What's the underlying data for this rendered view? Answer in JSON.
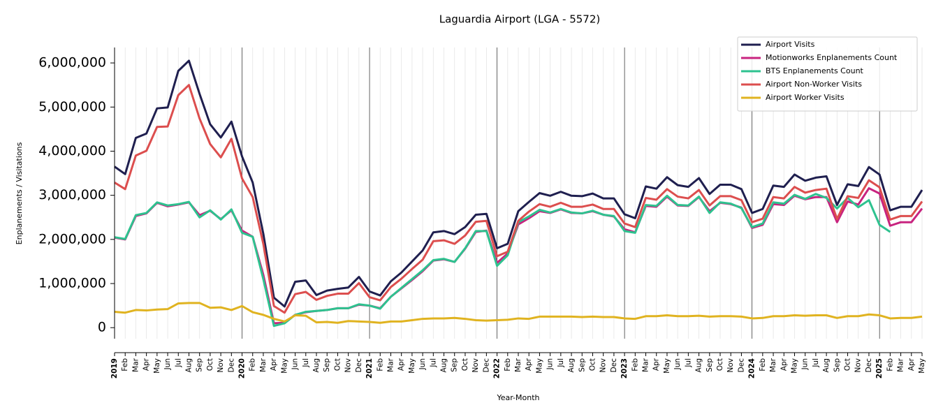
{
  "chart_data": {
    "type": "line",
    "title": "Laguardia Airport (LGA - 5572)",
    "x_label": "Year-Month",
    "y_label": "Enplanements / Visitations",
    "categories": [
      "2019",
      "Feb",
      "Mar",
      "Apr",
      "May",
      "Jun",
      "Jul",
      "Aug",
      "Sep",
      "Oct",
      "Nov",
      "Dec",
      "2020",
      "Feb",
      "Mar",
      "Apr",
      "May",
      "Jun",
      "Jul",
      "Aug",
      "Sep",
      "Oct",
      "Nov",
      "Dec",
      "2021",
      "Feb",
      "Mar",
      "Apr",
      "May",
      "Jun",
      "Jul",
      "Aug",
      "Sep",
      "Oct",
      "Nov",
      "Dec",
      "2022",
      "Feb",
      "Mar",
      "Apr",
      "May",
      "Jun",
      "Jul",
      "Aug",
      "Sep",
      "Oct",
      "Nov",
      "Dec",
      "2023",
      "Feb",
      "Mar",
      "Apr",
      "May",
      "Jun",
      "Jul",
      "Aug",
      "Sep",
      "Oct",
      "Nov",
      "Dec",
      "2024",
      "Feb",
      "Mar",
      "Apr",
      "May",
      "Jun",
      "Jul",
      "Aug",
      "Sep",
      "Oct",
      "Nov",
      "Dec",
      "2025",
      "Feb",
      "Mar",
      "Apr",
      "May"
    ],
    "series": [
      {
        "name": "Airport Visits",
        "color": "#1f1f4f",
        "values": [
          3650000,
          3480000,
          4300000,
          4400000,
          4970000,
          4990000,
          5820000,
          6050000,
          5300000,
          4610000,
          4310000,
          4670000,
          3880000,
          3290000,
          2130000,
          680000,
          480000,
          1040000,
          1070000,
          740000,
          840000,
          880000,
          910000,
          1150000,
          820000,
          730000,
          1050000,
          1250000,
          1500000,
          1750000,
          2160000,
          2190000,
          2120000,
          2280000,
          2560000,
          2580000,
          1800000,
          1900000,
          2640000,
          2850000,
          3050000,
          2990000,
          3080000,
          2990000,
          2980000,
          3040000,
          2930000,
          2930000,
          2570000,
          2480000,
          3200000,
          3150000,
          3410000,
          3230000,
          3190000,
          3390000,
          3030000,
          3240000,
          3240000,
          3140000,
          2600000,
          2690000,
          3220000,
          3190000,
          3470000,
          3330000,
          3400000,
          3430000,
          2780000,
          3250000,
          3210000,
          3640000,
          3470000,
          2660000,
          2740000,
          2740000,
          3120000
        ]
      },
      {
        "name": "Motionworks Enplanements Count",
        "color": "#c8237f",
        "values": [
          2040000,
          2000000,
          2530000,
          2590000,
          2830000,
          2750000,
          2790000,
          2840000,
          2550000,
          2650000,
          2460000,
          2660000,
          2200000,
          2060000,
          1200000,
          100000,
          110000,
          290000,
          350000,
          380000,
          400000,
          440000,
          440000,
          520000,
          500000,
          440000,
          700000,
          890000,
          1080000,
          1280000,
          1520000,
          1550000,
          1490000,
          1790000,
          2170000,
          2200000,
          1470000,
          1680000,
          2340000,
          2480000,
          2640000,
          2600000,
          2680000,
          2600000,
          2590000,
          2640000,
          2560000,
          2520000,
          2230000,
          2160000,
          2760000,
          2740000,
          2970000,
          2770000,
          2760000,
          2960000,
          2640000,
          2830000,
          2800000,
          2720000,
          2260000,
          2330000,
          2800000,
          2780000,
          2990000,
          2910000,
          2960000,
          2960000,
          2390000,
          2860000,
          2790000,
          3160000,
          3040000,
          2310000,
          2390000,
          2390000,
          2700000
        ]
      },
      {
        "name": "BTS Enplanements Count",
        "color": "#2ec28f",
        "values": [
          2050000,
          2010000,
          2550000,
          2600000,
          2840000,
          2770000,
          2800000,
          2850000,
          2500000,
          2660000,
          2450000,
          2680000,
          2150000,
          2060000,
          1100000,
          40000,
          100000,
          290000,
          360000,
          380000,
          400000,
          440000,
          440000,
          530000,
          500000,
          430000,
          700000,
          900000,
          1100000,
          1300000,
          1530000,
          1560000,
          1490000,
          1800000,
          2190000,
          2190000,
          1400000,
          1640000,
          2390000,
          2520000,
          2670000,
          2610000,
          2690000,
          2610000,
          2590000,
          2650000,
          2560000,
          2530000,
          2190000,
          2150000,
          2780000,
          2760000,
          2990000,
          2780000,
          2770000,
          2970000,
          2600000,
          2840000,
          2810000,
          2710000,
          2280000,
          2360000,
          2840000,
          2810000,
          3010000,
          2920000,
          3030000,
          2940000,
          2700000,
          2940000,
          2730000,
          2890000,
          2330000,
          2170000,
          null,
          null,
          null
        ]
      },
      {
        "name": "Airport Non-Worker Visits",
        "color": "#dc4e4e",
        "values": [
          3290000,
          3140000,
          3900000,
          4010000,
          4550000,
          4560000,
          5270000,
          5500000,
          4740000,
          4160000,
          3860000,
          4280000,
          3380000,
          2960000,
          1900000,
          490000,
          340000,
          760000,
          810000,
          630000,
          720000,
          770000,
          770000,
          1010000,
          690000,
          620000,
          920000,
          1110000,
          1330000,
          1540000,
          1960000,
          1980000,
          1900000,
          2090000,
          2400000,
          2420000,
          1620000,
          1720000,
          2420000,
          2630000,
          2800000,
          2740000,
          2830000,
          2740000,
          2740000,
          2790000,
          2690000,
          2690000,
          2360000,
          2280000,
          2940000,
          2900000,
          3140000,
          2970000,
          2930000,
          3120000,
          2770000,
          2980000,
          2980000,
          2890000,
          2390000,
          2470000,
          2960000,
          2930000,
          3190000,
          3060000,
          3120000,
          3150000,
          2460000,
          2980000,
          2940000,
          3340000,
          3180000,
          2450000,
          2530000,
          2530000,
          2860000
        ]
      },
      {
        "name": "Airport Worker Visits",
        "color": "#e0b320",
        "values": [
          360000,
          340000,
          400000,
          390000,
          410000,
          420000,
          550000,
          560000,
          560000,
          450000,
          460000,
          400000,
          490000,
          350000,
          290000,
          200000,
          140000,
          280000,
          270000,
          120000,
          130000,
          110000,
          150000,
          140000,
          130000,
          110000,
          140000,
          140000,
          170000,
          200000,
          210000,
          210000,
          220000,
          200000,
          170000,
          160000,
          170000,
          180000,
          210000,
          200000,
          250000,
          250000,
          250000,
          250000,
          240000,
          250000,
          240000,
          240000,
          210000,
          200000,
          260000,
          260000,
          280000,
          260000,
          260000,
          270000,
          250000,
          260000,
          260000,
          250000,
          210000,
          220000,
          260000,
          260000,
          280000,
          270000,
          280000,
          280000,
          220000,
          260000,
          260000,
          300000,
          280000,
          210000,
          220000,
          220000,
          250000
        ]
      }
    ],
    "ylim": [
      -250000,
      6350000
    ],
    "yticks": [
      0,
      {
        "value": 1000000,
        "label": "1,000,000"
      },
      {
        "value": 2000000,
        "label": "2,000,000"
      },
      {
        "value": 3000000,
        "label": "3,000,000"
      },
      {
        "value": 4000000,
        "label": "4,000,000"
      },
      {
        "value": 5000000,
        "label": "5,000,000"
      },
      {
        "value": 6000000,
        "label": "6,000,000"
      }
    ],
    "grid": true,
    "legend": "upper right"
  }
}
